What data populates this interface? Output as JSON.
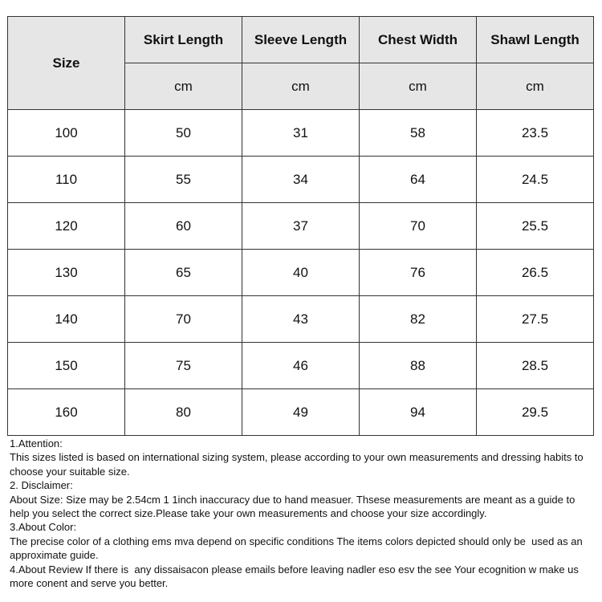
{
  "table": {
    "size_header": "Size",
    "columns": [
      {
        "label": "Skirt Length",
        "unit": "cm"
      },
      {
        "label": "Sleeve Length",
        "unit": "cm"
      },
      {
        "label": "Chest Width",
        "unit": "cm"
      },
      {
        "label": "Shawl Length",
        "unit": "cm"
      }
    ],
    "rows": [
      [
        "100",
        "50",
        "31",
        "58",
        "23.5"
      ],
      [
        "110",
        "55",
        "34",
        "64",
        "24.5"
      ],
      [
        "120",
        "60",
        "37",
        "70",
        "25.5"
      ],
      [
        "130",
        "65",
        "40",
        "76",
        "26.5"
      ],
      [
        "140",
        "70",
        "43",
        "82",
        "27.5"
      ],
      [
        "150",
        "75",
        "46",
        "88",
        "28.5"
      ],
      [
        "160",
        "80",
        "49",
        "94",
        "29.5"
      ]
    ],
    "header_bg": "#e6e6e6"
  },
  "notes": [
    "1.Attention:",
    "This sizes listed is based on international sizing system, please according to your own measurements and dressing habits to choose your suitable size.",
    "2. Disclaimer:",
    "About Size: Size may be 2.54cm 1 1inch inaccuracy due to hand measuer. Thsese measurements are meant as a guide to help you select the correct size.Please take your own measurements and choose your size accordingly.",
    "3.About Color:",
    "The precise color of a clothing ems mva depend on specific conditions The items colors depicted should only be  used as an approximate guide.",
    "4.About Review If there is  any dissaisacon please emails before leaving nadler eso esv the see Your ecognition w make us more conent and serve you better."
  ]
}
